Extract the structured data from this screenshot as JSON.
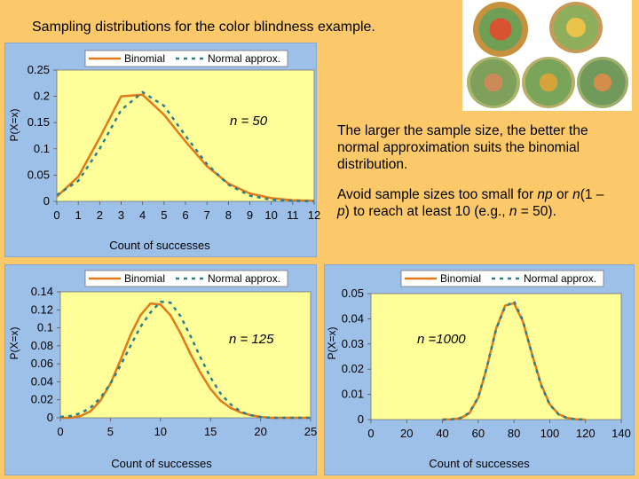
{
  "title": "Sampling distributions for the color blindness example.",
  "paragraph1": "The larger the sample size, the better the normal approximation suits the binomial distribution.",
  "paragraph2_parts": [
    "Avoid sample sizes too small for ",
    "np",
    " or ",
    "n",
    "(1 – ",
    "p",
    ") to reach at least 10 (e.g., ",
    "n",
    " = 50)."
  ],
  "plates": {
    "name": "color-blindness-test-plates",
    "colors": {
      "background": "#ffffff",
      "dots_primary": "#6f9e55",
      "dots_secondary": "#c8913e",
      "numeral": "#d8532f"
    }
  },
  "legend": {
    "binomial": "Binomial",
    "normal": "Normal approx."
  },
  "colors": {
    "slide_bg": "#fbc96a",
    "panel_bg": "#9cc0e8",
    "plot_bg": "#ffff99",
    "binomial": "#e07b1b",
    "normal": "#2f7f86"
  },
  "chart_data": [
    {
      "type": "line",
      "n_label": "n = 50",
      "ylabel": "P(X=x)",
      "xlabel": "Count of successes",
      "xlim": [
        0,
        12
      ],
      "ylim": [
        0,
        0.25
      ],
      "xticks": [
        0,
        1,
        2,
        3,
        4,
        5,
        6,
        7,
        8,
        9,
        10,
        11,
        12
      ],
      "yticks": [
        "0",
        "0.05",
        "0.1",
        "0.15",
        "0.2",
        "0.25"
      ],
      "grid": false,
      "legend_position": "top",
      "series": [
        {
          "name": "Binomial",
          "style": "solid",
          "x": [
            0,
            1,
            2,
            3,
            4,
            5,
            6,
            7,
            8,
            9,
            10,
            11,
            12
          ],
          "y": [
            0.009,
            0.047,
            0.121,
            0.2,
            0.203,
            0.165,
            0.114,
            0.067,
            0.034,
            0.015,
            0.006,
            0.002,
            0.001
          ]
        },
        {
          "name": "Normal approx.",
          "style": "dashed",
          "x": [
            0,
            1,
            2,
            3,
            4,
            5,
            6,
            7,
            8,
            9,
            10,
            11,
            12
          ],
          "y": [
            0.012,
            0.039,
            0.1,
            0.174,
            0.208,
            0.182,
            0.125,
            0.071,
            0.032,
            0.011,
            0.003,
            0.001,
            0.0
          ]
        }
      ]
    },
    {
      "type": "line",
      "n_label": "n = 125",
      "ylabel": "P(X=x)",
      "xlabel": "Count of successes",
      "xlim": [
        0,
        25
      ],
      "ylim": [
        0,
        0.14
      ],
      "xticks": [
        0,
        5,
        10,
        15,
        20,
        25
      ],
      "yticks": [
        "0",
        "0.02",
        "0.04",
        "0.06",
        "0.08",
        "0.1",
        "0.12",
        "0.14"
      ],
      "grid": false,
      "legend_position": "top",
      "series": [
        {
          "name": "Binomial",
          "style": "solid",
          "x": [
            0,
            1,
            2,
            3,
            4,
            5,
            6,
            7,
            8,
            9,
            10,
            11,
            12,
            13,
            14,
            15,
            16,
            17,
            18,
            19,
            20,
            21,
            22,
            23,
            24,
            25
          ],
          "y": [
            0.0,
            0.0,
            0.002,
            0.007,
            0.019,
            0.038,
            0.064,
            0.092,
            0.114,
            0.127,
            0.126,
            0.114,
            0.094,
            0.071,
            0.05,
            0.032,
            0.019,
            0.011,
            0.006,
            0.003,
            0.001,
            0.0,
            0.0,
            0.0,
            0.0,
            0.0
          ]
        },
        {
          "name": "Normal approx.",
          "style": "dashed",
          "x": [
            0,
            1,
            2,
            3,
            4,
            5,
            6,
            7,
            8,
            9,
            10,
            11,
            12,
            13,
            14,
            15,
            16,
            17,
            18,
            19,
            20,
            21,
            22,
            23,
            24,
            25
          ],
          "y": [
            0.001,
            0.002,
            0.005,
            0.011,
            0.022,
            0.038,
            0.058,
            0.08,
            0.101,
            0.117,
            0.129,
            0.128,
            0.113,
            0.091,
            0.067,
            0.045,
            0.027,
            0.015,
            0.007,
            0.003,
            0.001,
            0.0,
            0.0,
            0.0,
            0.0,
            0.0
          ]
        }
      ]
    },
    {
      "type": "line",
      "n_label": "n =1000",
      "ylabel": "P(X=x)",
      "xlabel": "Count of successes",
      "xlim": [
        0,
        140
      ],
      "ylim": [
        0,
        0.05
      ],
      "xticks": [
        0,
        20,
        40,
        60,
        80,
        100,
        120,
        140
      ],
      "yticks": [
        "0",
        "0.01",
        "0.02",
        "0.03",
        "0.04",
        "0.05"
      ],
      "grid": false,
      "legend_position": "top",
      "series": [
        {
          "name": "Binomial",
          "style": "solid",
          "x": [
            40,
            45,
            50,
            55,
            60,
            65,
            70,
            75,
            80,
            85,
            90,
            95,
            100,
            105,
            110,
            115,
            120
          ],
          "y": [
            0.0,
            0.0001,
            0.0005,
            0.0025,
            0.0087,
            0.0211,
            0.0361,
            0.0452,
            0.0462,
            0.0389,
            0.0262,
            0.0143,
            0.0061,
            0.0021,
            0.0006,
            0.0001,
            0.0
          ]
        },
        {
          "name": "Normal approx.",
          "style": "dashed",
          "x": [
            40,
            45,
            50,
            55,
            60,
            65,
            70,
            75,
            80,
            85,
            90,
            95,
            100,
            105,
            110,
            115,
            120
          ],
          "y": [
            0.0,
            0.0001,
            0.0006,
            0.0027,
            0.0089,
            0.0212,
            0.0358,
            0.0448,
            0.047,
            0.0393,
            0.026,
            0.0138,
            0.0059,
            0.002,
            0.0005,
            0.0001,
            0.0
          ]
        }
      ]
    }
  ]
}
